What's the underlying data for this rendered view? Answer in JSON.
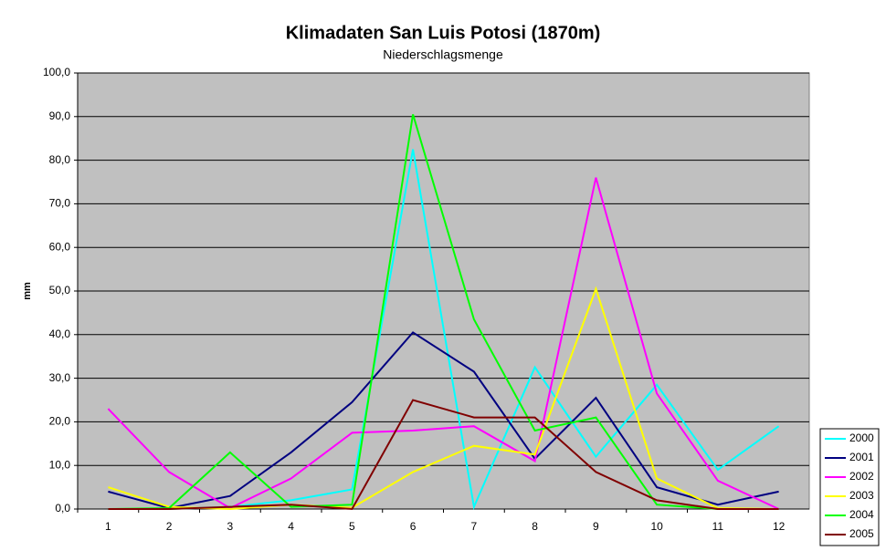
{
  "chart_data": {
    "type": "line",
    "title": "Klimadaten San Luis Potosi (1870m)",
    "subtitle": "Niederschlagsmenge",
    "y_label": "mm",
    "categories": [
      "1",
      "2",
      "3",
      "4",
      "5",
      "6",
      "7",
      "8",
      "9",
      "10",
      "11",
      "12"
    ],
    "series": [
      {
        "name": "2000",
        "color": "#00ffff",
        "values": [
          0,
          0,
          0.5,
          2,
          4.5,
          82.5,
          0.5,
          32.5,
          12,
          28.5,
          9,
          19
        ]
      },
      {
        "name": "2001",
        "color": "#000080",
        "values": [
          4,
          0.2,
          3,
          13,
          24.5,
          40.5,
          31.5,
          11.5,
          25.5,
          5,
          1,
          4
        ]
      },
      {
        "name": "2002",
        "color": "#ff00ff",
        "values": [
          23,
          8.5,
          0.2,
          7,
          17.5,
          18,
          19,
          11,
          76,
          26.5,
          6.5,
          0
        ]
      },
      {
        "name": "2003",
        "color": "#ffff00",
        "values": [
          5,
          0.5,
          0,
          1,
          0.3,
          8.5,
          14.5,
          12.5,
          50.5,
          7,
          0.2,
          0
        ]
      },
      {
        "name": "2004",
        "color": "#00ff00",
        "values": [
          0,
          0.2,
          13,
          0.5,
          1,
          90.5,
          43.5,
          18,
          21,
          1,
          0,
          0
        ]
      },
      {
        "name": "2005",
        "color": "#800000",
        "values": [
          0,
          0,
          0.5,
          1,
          0,
          25,
          21,
          21,
          8.5,
          2,
          0,
          0
        ]
      }
    ],
    "ylim": [
      0,
      100
    ],
    "yticks": [
      {
        "value": 0,
        "label": "0,0"
      },
      {
        "value": 10,
        "label": "10,0"
      },
      {
        "value": 20,
        "label": "20,0"
      },
      {
        "value": 30,
        "label": "30,0"
      },
      {
        "value": 40,
        "label": "40,0"
      },
      {
        "value": 50,
        "label": "50,0"
      },
      {
        "value": 60,
        "label": "60,0"
      },
      {
        "value": 70,
        "label": "70,0"
      },
      {
        "value": 80,
        "label": "80,0"
      },
      {
        "value": 90,
        "label": "90,0"
      },
      {
        "value": 100,
        "label": "100,0"
      }
    ],
    "grid": true,
    "legend": "right",
    "background": "#c0c0c0"
  }
}
